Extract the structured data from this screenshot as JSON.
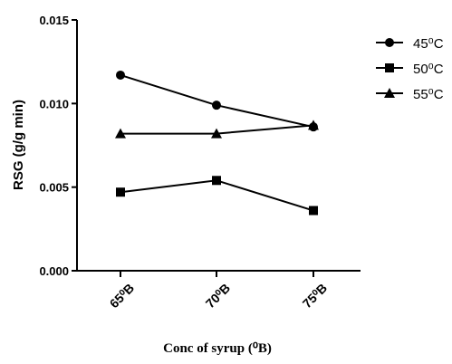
{
  "chart_data": {
    "type": "line",
    "categories": [
      "65⁰B",
      "70⁰B",
      "75⁰B"
    ],
    "series": [
      {
        "name": "45⁰C",
        "marker": "circle",
        "values": [
          0.0117,
          0.0099,
          0.0086
        ]
      },
      {
        "name": "50⁰C",
        "marker": "square",
        "values": [
          0.0047,
          0.0054,
          0.0036
        ]
      },
      {
        "name": "55⁰C",
        "marker": "triangle",
        "values": [
          0.0082,
          0.0082,
          0.0087
        ]
      }
    ],
    "xlabel": "Conc of syrup (⁰B)",
    "ylabel": "RSG (g/g min)",
    "ylim": [
      0,
      0.015
    ],
    "yticks": [
      "0.000",
      "0.005",
      "0.010",
      "0.015"
    ],
    "grid": false,
    "legend_position": "right"
  }
}
